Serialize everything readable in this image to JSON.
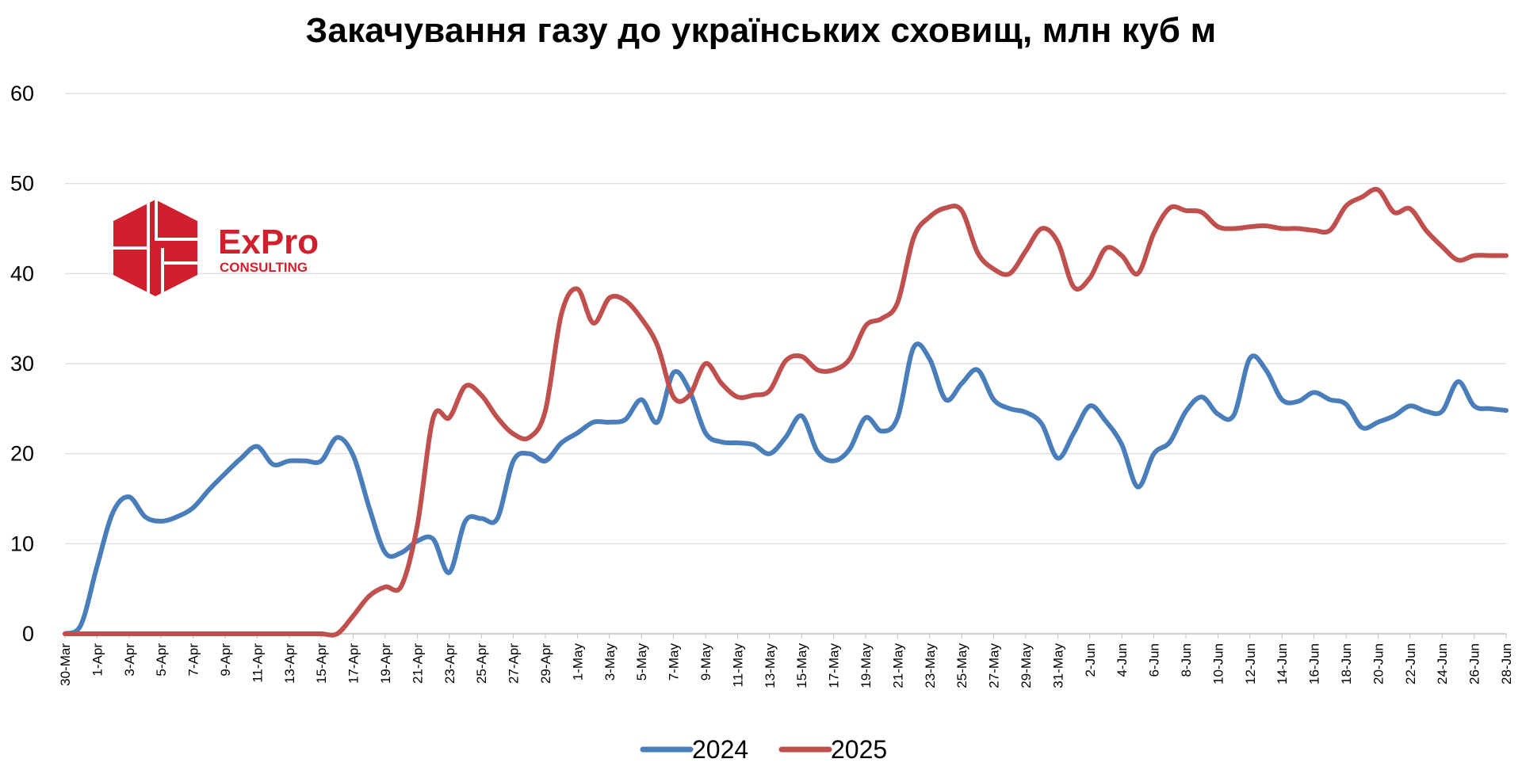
{
  "chart_data": {
    "type": "line",
    "title": "Закачування газу до українських сховищ, млн куб м",
    "xlabel": "",
    "ylabel": "",
    "ylim": [
      0,
      60
    ],
    "yticks": [
      0,
      10,
      20,
      30,
      40,
      50,
      60
    ],
    "grid": "horizontal",
    "legend_position": "bottom",
    "x_start": "30-Mar",
    "x_end": "28-Jun",
    "x_tick_labels": [
      "30-Mar",
      "1-Apr",
      "3-Apr",
      "5-Apr",
      "7-Apr",
      "9-Apr",
      "11-Apr",
      "13-Apr",
      "15-Apr",
      "17-Apr",
      "19-Apr",
      "21-Apr",
      "23-Apr",
      "25-Apr",
      "27-Apr",
      "29-Apr",
      "1-May",
      "3-May",
      "5-May",
      "7-May",
      "9-May",
      "11-May",
      "13-May",
      "15-May",
      "17-May",
      "19-May",
      "21-May",
      "23-May",
      "25-May",
      "27-May",
      "29-May",
      "31-May",
      "2-Jun",
      "4-Jun",
      "6-Jun",
      "8-Jun",
      "10-Jun",
      "12-Jun",
      "14-Jun",
      "16-Jun",
      "18-Jun",
      "20-Jun",
      "22-Jun",
      "24-Jun",
      "26-Jun",
      "28-Jun"
    ],
    "series": [
      {
        "name": "2024",
        "color": "#4A7EBB",
        "points": [
          [
            "30-Mar",
            0
          ],
          [
            "31-Mar",
            1
          ],
          [
            "1-Apr",
            7.5
          ],
          [
            "2-Apr",
            13.5
          ],
          [
            "3-Apr",
            15.2
          ],
          [
            "4-Apr",
            13
          ],
          [
            "5-Apr",
            12.5
          ],
          [
            "6-Apr",
            13
          ],
          [
            "7-Apr",
            14
          ],
          [
            "8-Apr",
            16
          ],
          [
            "9-Apr",
            17.8
          ],
          [
            "10-Apr",
            19.5
          ],
          [
            "11-Apr",
            20.8
          ],
          [
            "12-Apr",
            18.8
          ],
          [
            "13-Apr",
            19.2
          ],
          [
            "14-Apr",
            19.2
          ],
          [
            "15-Apr",
            19.2
          ],
          [
            "16-Apr",
            21.8
          ],
          [
            "17-Apr",
            19.8
          ],
          [
            "18-Apr",
            14
          ],
          [
            "19-Apr",
            9
          ],
          [
            "20-Apr",
            9
          ],
          [
            "21-Apr",
            10.3
          ],
          [
            "22-Apr",
            10.5
          ],
          [
            "23-Apr",
            6.8
          ],
          [
            "24-Apr",
            12.5
          ],
          [
            "25-Apr",
            12.8
          ],
          [
            "26-Apr",
            12.8
          ],
          [
            "27-Apr",
            19.2
          ],
          [
            "28-Apr",
            20
          ],
          [
            "29-Apr",
            19.2
          ],
          [
            "30-Apr",
            21.2
          ],
          [
            "1-May",
            22.3
          ],
          [
            "2-May",
            23.5
          ],
          [
            "3-May",
            23.5
          ],
          [
            "4-May",
            23.8
          ],
          [
            "5-May",
            26
          ],
          [
            "6-May",
            23.5
          ],
          [
            "7-May",
            29
          ],
          [
            "8-May",
            27
          ],
          [
            "9-May",
            22.3
          ],
          [
            "10-May",
            21.3
          ],
          [
            "11-May",
            21.2
          ],
          [
            "12-May",
            21
          ],
          [
            "13-May",
            20
          ],
          [
            "14-May",
            21.8
          ],
          [
            "15-May",
            24.2
          ],
          [
            "16-May",
            20.2
          ],
          [
            "17-May",
            19.2
          ],
          [
            "18-May",
            20.5
          ],
          [
            "19-May",
            24
          ],
          [
            "20-May",
            22.5
          ],
          [
            "21-May",
            24
          ],
          [
            "22-May",
            31.8
          ],
          [
            "23-May",
            30.5
          ],
          [
            "24-May",
            26
          ],
          [
            "25-May",
            27.8
          ],
          [
            "26-May",
            29.3
          ],
          [
            "27-May",
            26
          ],
          [
            "28-May",
            25
          ],
          [
            "29-May",
            24.6
          ],
          [
            "30-May",
            23.3
          ],
          [
            "31-May",
            19.5
          ],
          [
            "1-Jun",
            22.3
          ],
          [
            "2-Jun",
            25.3
          ],
          [
            "3-Jun",
            23.6
          ],
          [
            "4-Jun",
            21
          ],
          [
            "5-Jun",
            16.3
          ],
          [
            "6-Jun",
            20
          ],
          [
            "7-Jun",
            21.3
          ],
          [
            "8-Jun",
            24.7
          ],
          [
            "9-Jun",
            26.3
          ],
          [
            "10-Jun",
            24.4
          ],
          [
            "11-Jun",
            24.3
          ],
          [
            "12-Jun",
            30.6
          ],
          [
            "13-Jun",
            29.3
          ],
          [
            "14-Jun",
            26
          ],
          [
            "15-Jun",
            25.8
          ],
          [
            "16-Jun",
            26.8
          ],
          [
            "17-Jun",
            26
          ],
          [
            "18-Jun",
            25.5
          ],
          [
            "19-Jun",
            22.9
          ],
          [
            "20-Jun",
            23.5
          ],
          [
            "21-Jun",
            24.2
          ],
          [
            "22-Jun",
            25.3
          ],
          [
            "23-Jun",
            24.7
          ],
          [
            "24-Jun",
            24.7
          ],
          [
            "25-Jun",
            28
          ],
          [
            "26-Jun",
            25.3
          ],
          [
            "27-Jun",
            25
          ],
          [
            "28-Jun",
            24.8
          ]
        ]
      },
      {
        "name": "2025",
        "color": "#C0504D",
        "points": [
          [
            "30-Mar",
            0
          ],
          [
            "31-Mar",
            0
          ],
          [
            "1-Apr",
            0
          ],
          [
            "2-Apr",
            0
          ],
          [
            "3-Apr",
            0
          ],
          [
            "4-Apr",
            0
          ],
          [
            "5-Apr",
            0
          ],
          [
            "6-Apr",
            0
          ],
          [
            "7-Apr",
            0
          ],
          [
            "8-Apr",
            0
          ],
          [
            "9-Apr",
            0
          ],
          [
            "10-Apr",
            0
          ],
          [
            "11-Apr",
            0
          ],
          [
            "12-Apr",
            0
          ],
          [
            "13-Apr",
            0
          ],
          [
            "14-Apr",
            0
          ],
          [
            "15-Apr",
            0
          ],
          [
            "16-Apr",
            0
          ],
          [
            "17-Apr",
            2
          ],
          [
            "18-Apr",
            4.2
          ],
          [
            "19-Apr",
            5.2
          ],
          [
            "20-Apr",
            5.3
          ],
          [
            "21-Apr",
            12
          ],
          [
            "22-Apr",
            24
          ],
          [
            "23-Apr",
            24
          ],
          [
            "24-Apr",
            27.5
          ],
          [
            "25-Apr",
            26.5
          ],
          [
            "26-Apr",
            24
          ],
          [
            "27-Apr",
            22.2
          ],
          [
            "28-Apr",
            21.8
          ],
          [
            "29-Apr",
            24.8
          ],
          [
            "30-Apr",
            35.5
          ],
          [
            "1-May",
            38.3
          ],
          [
            "2-May",
            34.5
          ],
          [
            "3-May",
            37.3
          ],
          [
            "4-May",
            37
          ],
          [
            "5-May",
            35
          ],
          [
            "6-May",
            32
          ],
          [
            "7-May",
            26.3
          ],
          [
            "8-May",
            26.5
          ],
          [
            "9-May",
            30
          ],
          [
            "10-May",
            27.8
          ],
          [
            "11-May",
            26.3
          ],
          [
            "12-May",
            26.5
          ],
          [
            "13-May",
            27
          ],
          [
            "14-May",
            30.3
          ],
          [
            "15-May",
            30.8
          ],
          [
            "16-May",
            29.3
          ],
          [
            "17-May",
            29.3
          ],
          [
            "18-May",
            30.5
          ],
          [
            "19-May",
            34.2
          ],
          [
            "20-May",
            35
          ],
          [
            "21-May",
            36.8
          ],
          [
            "22-May",
            44
          ],
          [
            "23-May",
            46.3
          ],
          [
            "24-May",
            47.3
          ],
          [
            "25-May",
            47
          ],
          [
            "26-May",
            42.3
          ],
          [
            "27-May",
            40.5
          ],
          [
            "28-May",
            40
          ],
          [
            "29-May",
            42.5
          ],
          [
            "30-May",
            45
          ],
          [
            "31-May",
            43.5
          ],
          [
            "1-Jun",
            38.5
          ],
          [
            "2-Jun",
            39.5
          ],
          [
            "3-Jun",
            42.8
          ],
          [
            "4-Jun",
            42
          ],
          [
            "5-Jun",
            40
          ],
          [
            "6-Jun",
            44.5
          ],
          [
            "7-Jun",
            47.3
          ],
          [
            "8-Jun",
            47
          ],
          [
            "9-Jun",
            46.8
          ],
          [
            "10-Jun",
            45.2
          ],
          [
            "11-Jun",
            45
          ],
          [
            "12-Jun",
            45.2
          ],
          [
            "13-Jun",
            45.3
          ],
          [
            "14-Jun",
            45
          ],
          [
            "15-Jun",
            45
          ],
          [
            "16-Jun",
            44.8
          ],
          [
            "17-Jun",
            44.8
          ],
          [
            "18-Jun",
            47.5
          ],
          [
            "19-Jun",
            48.5
          ],
          [
            "20-Jun",
            49.3
          ],
          [
            "21-Jun",
            46.8
          ],
          [
            "22-Jun",
            47.2
          ],
          [
            "23-Jun",
            44.8
          ],
          [
            "24-Jun",
            43
          ],
          [
            "25-Jun",
            41.5
          ],
          [
            "26-Jun",
            42
          ],
          [
            "27-Jun",
            42
          ],
          [
            "28-Jun",
            42
          ]
        ]
      }
    ]
  },
  "logo": {
    "name": "ExPro",
    "subtitle": "CONSULTING",
    "color": "#D0202E"
  }
}
